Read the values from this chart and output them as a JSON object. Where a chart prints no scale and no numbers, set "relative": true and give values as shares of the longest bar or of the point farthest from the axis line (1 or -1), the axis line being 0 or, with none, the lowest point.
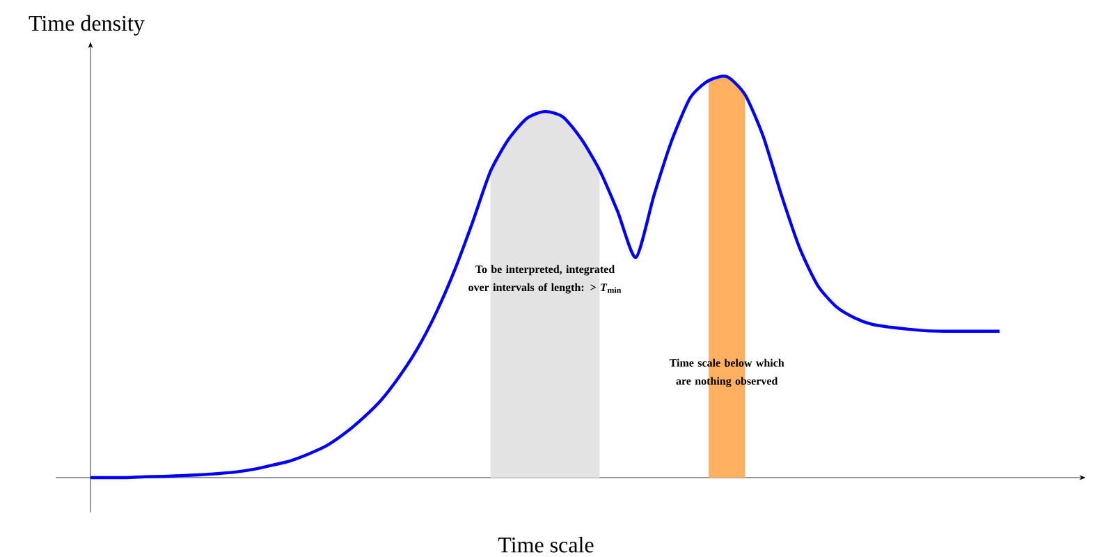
{
  "chart_data": {
    "type": "line",
    "relative": true,
    "xlabel": "Time scale",
    "ylabel": "Time density",
    "categories": [
      null,
      null,
      null,
      null,
      null,
      null,
      null,
      null,
      null,
      null,
      null,
      null,
      null,
      null,
      null,
      null,
      null,
      null,
      null,
      null,
      null,
      null,
      null,
      null,
      null,
      null,
      null,
      null,
      null,
      null,
      null,
      null,
      null,
      null,
      null,
      null,
      null,
      null,
      null,
      null,
      null,
      null,
      null,
      null,
      null,
      null,
      null,
      null,
      null,
      null,
      null
    ],
    "series": [
      {
        "color": "#0000ff",
        "values": [
          0,
          0,
          0,
          0.002,
          0.003,
          0.005,
          0.007,
          0.01,
          0.014,
          0.021,
          0.031,
          0.042,
          0.059,
          0.08,
          0.111,
          0.149,
          0.194,
          0.253,
          0.323,
          0.41,
          0.514,
          0.635,
          0.764,
          0.844,
          0.896,
          0.913,
          0.899,
          0.844,
          0.767,
          0.663,
          0.549,
          0.705,
          0.844,
          0.948,
          0.99,
          1,
          0.955,
          0.851,
          0.705,
          0.573,
          0.479,
          0.427,
          0.399,
          0.382,
          0.375,
          0.37,
          0.366,
          0.365,
          0.365,
          0.365,
          0.365
        ]
      }
    ],
    "annotations": [
      "To be interpreted, integrated over intervals of length: > *T*$_{min}$",
      "Time scale below which are nothing observed"
    ]
  }
}
